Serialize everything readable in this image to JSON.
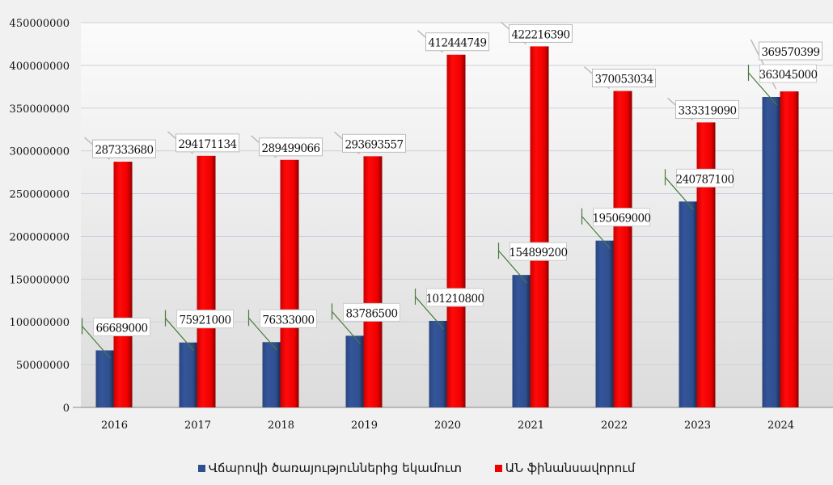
{
  "chart_data": {
    "type": "bar",
    "title": "",
    "xlabel": "",
    "ylabel": "",
    "categories": [
      "2016",
      "2017",
      "2018",
      "2019",
      "2020",
      "2021",
      "2022",
      "2023",
      "2024"
    ],
    "ylim": [
      0,
      450000000
    ],
    "yticks": [
      "0",
      "50000000",
      "100000000",
      "150000000",
      "200000000",
      "250000000",
      "300000000",
      "350000000",
      "400000000",
      "450000000"
    ],
    "grid": true,
    "legend_position": "bottom",
    "series": [
      {
        "name": "Վճարովի ծառայություններից եկամուտ",
        "color": "#2f4f8f",
        "values": [
          66689000,
          75921000,
          76333000,
          83786500,
          101210800,
          154899200,
          195069000,
          240787100,
          363045000
        ]
      },
      {
        "name": "ԱՆ ֆինանսավորում",
        "color": "#ee0000",
        "values": [
          287333680,
          294171134,
          289499066,
          293693557,
          412444749,
          422216390,
          370053034,
          333319090,
          369570399
        ]
      }
    ]
  }
}
